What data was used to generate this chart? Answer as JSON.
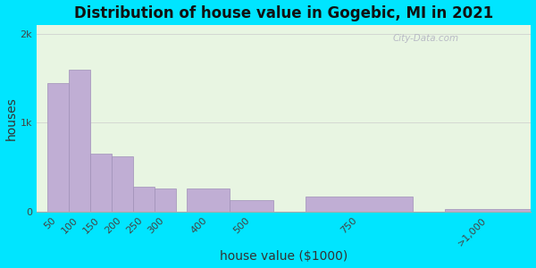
{
  "title": "Distribution of house value in Gogebic, MI in 2021",
  "xlabel": "house value ($1000)",
  "ylabel": "houses",
  "categories": [
    "50",
    "100",
    "150",
    "200",
    "250",
    "300",
    "400",
    "500",
    "750",
    ">1,000"
  ],
  "x_positions": [
    50,
    100,
    150,
    200,
    250,
    300,
    400,
    500,
    750,
    1050
  ],
  "x_widths": [
    50,
    50,
    50,
    50,
    50,
    50,
    100,
    100,
    250,
    200
  ],
  "values": [
    1450,
    1600,
    650,
    620,
    280,
    260,
    260,
    130,
    170,
    30
  ],
  "bar_color": "#c0aed4",
  "bar_edge_color": "#a090b8",
  "background_color_outer": "#00e5ff",
  "background_color_plot": "#e8f5e2",
  "title_fontsize": 12,
  "axis_label_fontsize": 10,
  "tick_label_fontsize": 8,
  "ytick_labels": [
    "0",
    "1k",
    "2k"
  ],
  "ytick_values": [
    0,
    1000,
    2000
  ],
  "ylim": [
    0,
    2100
  ],
  "xlim": [
    0,
    1150
  ],
  "watermark_text": "City-Data.com"
}
